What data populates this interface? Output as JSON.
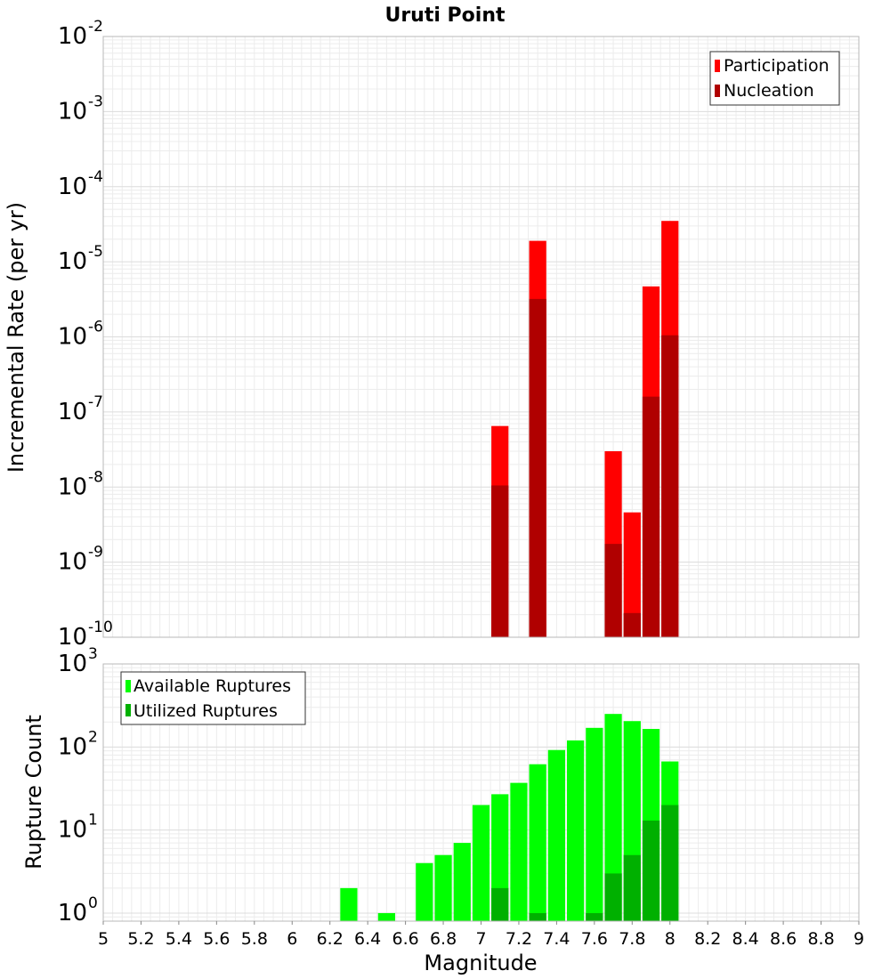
{
  "chart_data": [
    {
      "type": "bar",
      "title": "Uruti Point",
      "xlabel": "",
      "ylabel": "Incremental Rate (per yr)",
      "y_scale": "log",
      "ylim": [
        1e-10,
        0.01
      ],
      "xlim": [
        5,
        9
      ],
      "grid": true,
      "legend_position": "top-right",
      "y_tick_exponents": [
        "-10",
        "-9",
        "-8",
        "-7",
        "-6",
        "-5",
        "-4",
        "-3",
        "-2"
      ],
      "y_tick_base": "10",
      "x": [
        7.1,
        7.3,
        7.7,
        7.8,
        7.9,
        8.0
      ],
      "series": [
        {
          "name": "Participation",
          "color": "#ff0000",
          "values": [
            6.5e-08,
            1.9e-05,
            3e-08,
            4.6e-09,
            4.7e-06,
            3.5e-05
          ]
        },
        {
          "name": "Nucleation",
          "color": "#b00000",
          "values": [
            1.05e-08,
            3.2e-06,
            1.75e-09,
            2.1e-10,
            1.6e-07,
            1.05e-06
          ]
        }
      ]
    },
    {
      "type": "bar",
      "title": "",
      "xlabel": "Magnitude",
      "ylabel": "Rupture Count",
      "y_scale": "log",
      "ylim": [
        0.8,
        1000
      ],
      "xlim": [
        5,
        9
      ],
      "grid": true,
      "legend_position": "top-left",
      "y_tick_exponents": [
        "0",
        "1",
        "2",
        "3"
      ],
      "y_tick_base": "10",
      "x_tick_labels": [
        "5",
        "5.2",
        "5.4",
        "5.6",
        "5.8",
        "6",
        "6.2",
        "6.4",
        "6.6",
        "6.8",
        "7",
        "7.2",
        "7.4",
        "7.6",
        "7.8",
        "8",
        "8.2",
        "8.4",
        "8.6",
        "8.8",
        "9"
      ],
      "x": [
        6.3,
        6.5,
        6.7,
        6.8,
        6.9,
        7.0,
        7.1,
        7.2,
        7.3,
        7.4,
        7.5,
        7.6,
        7.7,
        7.8,
        7.9,
        8.0
      ],
      "series": [
        {
          "name": "Available Ruptures",
          "color": "#00ff00",
          "values": [
            2,
            1,
            4,
            5,
            7,
            20,
            27,
            37,
            62,
            92,
            120,
            170,
            250,
            205,
            165,
            67
          ]
        },
        {
          "name": "Utilized Ruptures",
          "color": "#00b000",
          "values": [
            0,
            0,
            0,
            0,
            0,
            0,
            2,
            0,
            1,
            0,
            0,
            1,
            3,
            5,
            13,
            20
          ]
        }
      ]
    }
  ]
}
